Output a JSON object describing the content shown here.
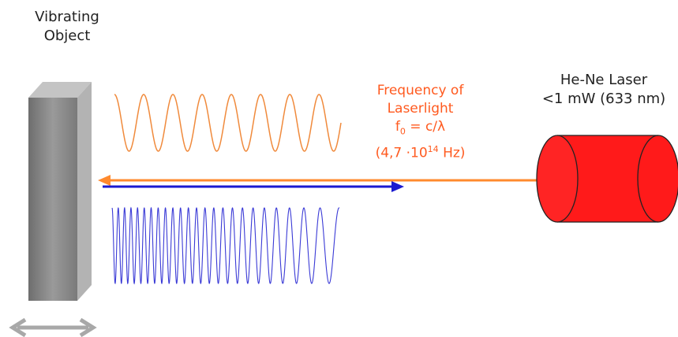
{
  "object": {
    "label_line1": "Vibrating",
    "label_line2": "Object"
  },
  "laser": {
    "label_line1": "He-Ne Laser",
    "label_line2": "<1 mW (633 nm)"
  },
  "frequency": {
    "line1": "Frequency of",
    "line2": "Laserlight",
    "line3_f": "f",
    "line3_sub": "0",
    "line3_rest": " = c/λ",
    "line4_pre": "(4,7 ⋅10",
    "line4_sup": "14",
    "line4_post": " Hz)"
  },
  "colors": {
    "laser_beam": "#ff8a2e",
    "emitted_wave": "#f08a3c",
    "reflected_wave": "#3a3ad6",
    "return_arrow": "#1a1ad0",
    "laser_body": "#ff1a1a",
    "object_front": "#8a8a8a",
    "object_side": "#b8b8b8",
    "motion_arrow": "#a8a8a8"
  }
}
